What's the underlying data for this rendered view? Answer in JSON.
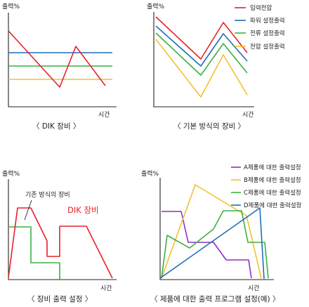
{
  "colors": {
    "red": "#e8202a",
    "blue": "#1f6fb5",
    "green": "#3cb043",
    "yellow": "#f2c12e",
    "purple": "#8b2fc9",
    "axis": "#222222"
  },
  "panel1": {
    "ylabel": "출력%",
    "xlabel": "시간",
    "caption": "〈 DIK 장비 〉"
  },
  "panel2": {
    "ylabel": "출력%",
    "xlabel": "시간",
    "caption": "〈 기본 방식의 장비 〉",
    "legend": [
      "입력전압",
      "파워 설정출력",
      "전류 설정출력",
      "전압 설정출력"
    ]
  },
  "panel3": {
    "ylabel": "출력%",
    "xlabel": "시간",
    "caption": "〈 장비 출력 설정 〉",
    "annotation_basic": "기존 방식의 장비",
    "annotation_dik": "DIK 장비"
  },
  "panel4": {
    "ylabel": "출력%",
    "xlabel": "시간",
    "caption": "〈 제품에 대한 출력 프로그램 설정(예) 〉",
    "legend": [
      "A제품에 대한 출력설정",
      "B제품에 대한 출력설정",
      "C제품에 대한 출력설정",
      "D제품에 대한 출력설정"
    ]
  }
}
